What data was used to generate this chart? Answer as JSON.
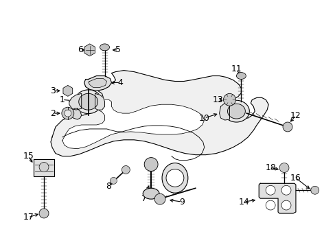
{
  "background_color": "#ffffff",
  "fig_width": 4.89,
  "fig_height": 3.6,
  "dpi": 100,
  "image_data": "target_placeholder"
}
